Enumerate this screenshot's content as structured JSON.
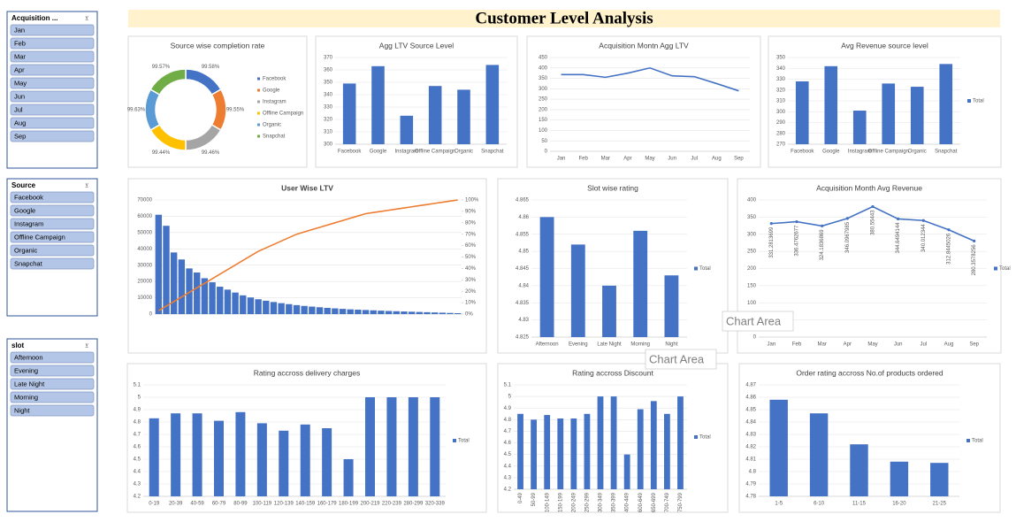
{
  "title": "Customer Level Analysis",
  "tooltips": [
    "Chart Area",
    "Chart Area"
  ],
  "slicers": [
    {
      "title": "Acquisition ...",
      "items": [
        "Jan",
        "Feb",
        "Mar",
        "Apr",
        "May",
        "Jun",
        "Jul",
        "Aug",
        "Sep"
      ]
    },
    {
      "title": "Source",
      "items": [
        "Facebook",
        "Google",
        "Instagram",
        "Offline Campaign",
        "Organic",
        "Snapchat"
      ]
    },
    {
      "title": "slot",
      "items": [
        "Afternoon",
        "Evening",
        "Late Night",
        "Morning",
        "Night"
      ]
    }
  ],
  "chart_data": [
    {
      "type": "pie",
      "title": "Source wise completion rate",
      "categories": [
        "Facebook",
        "Google",
        "Instagram",
        "Offline Campaign",
        "Organic",
        "Snapchat"
      ],
      "values": [
        99.58,
        99.55,
        99.46,
        99.44,
        99.63,
        99.57
      ],
      "value_labels": [
        "99.58%",
        "99.55%",
        "99.46%",
        "99.44%",
        "99.63%",
        "99.57%"
      ],
      "colors": [
        "#4472c4",
        "#ed7d31",
        "#a5a5a5",
        "#ffc000",
        "#5b9bd5",
        "#70ad47"
      ]
    },
    {
      "type": "bar",
      "title": "Agg LTV Source Level",
      "categories": [
        "Facebook",
        "Google",
        "Instagram",
        "Offline Campaign",
        "Organic",
        "Snapchat"
      ],
      "values": [
        349,
        363,
        323,
        347,
        344,
        364
      ],
      "color": "#4472c4",
      "ylim": [
        300,
        370
      ],
      "yticks": [
        300,
        310,
        320,
        330,
        340,
        350,
        360,
        370
      ],
      "grid": true
    },
    {
      "type": "line",
      "title": "Acquisition Montn Agg LTV",
      "categories": [
        "Jan",
        "Feb",
        "Mar",
        "Apr",
        "May",
        "Jun",
        "Jul",
        "Aug",
        "Sep"
      ],
      "values": [
        368,
        368,
        355,
        375,
        400,
        362,
        358,
        325,
        290
      ],
      "color": "#4472c4",
      "ylim": [
        0,
        450
      ],
      "yticks": [
        0,
        50,
        100,
        150,
        200,
        250,
        300,
        350,
        400,
        450
      ],
      "grid": true
    },
    {
      "type": "bar",
      "title": "Avg Revenue source level",
      "categories": [
        "Facebook",
        "Google",
        "Instagram",
        "Offline Campaign",
        "Organic",
        "Snapchat"
      ],
      "series": [
        {
          "name": "Total",
          "color": "#4472c4",
          "values": [
            328,
            342,
            301,
            326,
            323,
            344
          ]
        }
      ],
      "ylim": [
        270,
        350
      ],
      "yticks": [
        270,
        280,
        290,
        300,
        310,
        320,
        330,
        340,
        350
      ],
      "grid": true
    },
    {
      "type": "pareto",
      "title": "User Wise LTV",
      "categories": [
        null,
        null,
        null,
        null,
        null,
        null,
        null,
        null,
        null,
        null,
        null,
        null,
        null,
        null,
        null,
        null,
        null,
        null,
        null,
        null,
        null,
        null,
        null,
        null,
        null,
        null,
        null,
        null,
        null,
        null,
        null,
        null,
        null,
        null,
        null,
        null,
        null,
        null,
        null,
        null
      ],
      "series": [
        {
          "color": "#4472c4",
          "values": [
            60925,
            54149,
            37800,
            33500,
            28000,
            25500,
            22000,
            19500,
            16800,
            15000,
            13200,
            11500,
            10200,
            9100,
            8200,
            7400,
            6700,
            6100,
            5500,
            5000,
            4600,
            4200,
            3800,
            3500,
            3200,
            2900,
            2700,
            2500,
            2300,
            2100,
            1900,
            1750,
            1600,
            1450,
            1300,
            1150,
            1000,
            850,
            700,
            550
          ]
        },
        {
          "color": "#ed7d31",
          "axis": "y2",
          "values": [
            3,
            7,
            11,
            15,
            19,
            23,
            27,
            31,
            35,
            39,
            43,
            47,
            51,
            55,
            58,
            61,
            64,
            67,
            70,
            72,
            74,
            76,
            78,
            80,
            82,
            84,
            86,
            88,
            89,
            90,
            91,
            92,
            93,
            94,
            95,
            96,
            97,
            98,
            99,
            100
          ]
        }
      ],
      "ylim": [
        0,
        70000
      ],
      "yticks": [
        0,
        10000,
        20000,
        30000,
        40000,
        50000,
        60000,
        70000
      ],
      "y2lim": [
        0,
        100
      ],
      "y2ticks": [
        {
          "value": 0,
          "label": "0%"
        },
        {
          "value": 10,
          "label": "10%"
        },
        {
          "value": 20,
          "label": "20%"
        },
        {
          "value": 30,
          "label": "30%"
        },
        {
          "value": 40,
          "label": "40%"
        },
        {
          "value": 50,
          "label": "50%"
        },
        {
          "value": 60,
          "label": "60%"
        },
        {
          "value": 70,
          "label": "70%"
        },
        {
          "value": 80,
          "label": "80%"
        },
        {
          "value": 90,
          "label": "90%"
        },
        {
          "value": 100,
          "label": "100%"
        }
      ],
      "grid": true
    },
    {
      "type": "bar",
      "title": "Slot wise rating",
      "categories": [
        "Afternoon",
        "Evening",
        "Late Night",
        "Morning",
        "Night"
      ],
      "series": [
        {
          "name": "Total",
          "color": "#4472c4",
          "values": [
            4.86,
            4.852,
            4.84,
            4.856,
            4.843
          ]
        }
      ],
      "ylim": [
        4.825,
        4.865
      ],
      "yticks": [
        4.825,
        4.83,
        4.835,
        4.84,
        4.845,
        4.85,
        4.855,
        4.86,
        4.865
      ],
      "grid": true
    },
    {
      "type": "line",
      "title": "Acquisition Month Avg Revenue",
      "categories": [
        "Jan",
        "Feb",
        "Mar",
        "Apr",
        "May",
        "Jun",
        "Jul",
        "Aug",
        "Sep"
      ],
      "series": [
        {
          "name": "Total",
          "color": "#4472c4",
          "values": [
            331.2813699,
            336.4762677,
            324.1836869,
            346.0967985,
            380.55443,
            344.6494144,
            340.012344,
            312.8445026,
            280.3578256
          ]
        }
      ],
      "data_labels": true,
      "ylim": [
        0,
        400
      ],
      "yticks": [
        0,
        50,
        100,
        150,
        200,
        250,
        300,
        350,
        400
      ],
      "grid": true
    },
    {
      "type": "bar",
      "title": "Rating accross delivery charges",
      "categories": [
        "0-19",
        "20-39",
        "40-59",
        "60-79",
        "80-99",
        "100-119",
        "120-139",
        "140-159",
        "160-179",
        "180-199",
        "200-219",
        "220-239",
        "280-299",
        "320-339"
      ],
      "series": [
        {
          "name": "Total",
          "color": "#4472c4",
          "values": [
            4.83,
            4.87,
            4.87,
            4.81,
            4.88,
            4.79,
            4.73,
            4.78,
            4.75,
            4.5,
            5,
            5,
            5,
            5
          ]
        }
      ],
      "ylim": [
        4.2,
        5.1
      ],
      "yticks": [
        4.2,
        4.3,
        4.4,
        4.5,
        4.6,
        4.7,
        4.8,
        4.9,
        5,
        5.1
      ],
      "grid": true
    },
    {
      "type": "bar",
      "title": "Rating accross Discount",
      "categories": [
        "0-49",
        "50-99",
        "100-149",
        "150-199",
        "200-249",
        "250-299",
        "300-349",
        "350-399",
        "400-449",
        "600-649",
        "650-699",
        "700-749",
        "750-799"
      ],
      "series": [
        {
          "name": "Total",
          "color": "#4472c4",
          "values": [
            4.85,
            4.8,
            4.84,
            4.81,
            4.81,
            4.85,
            5,
            5,
            4.5,
            4.89,
            4.96,
            4.85,
            5
          ]
        }
      ],
      "ylim": [
        4.2,
        5.1
      ],
      "yticks": [
        4.2,
        4.3,
        4.4,
        4.5,
        4.6,
        4.7,
        4.8,
        4.9,
        5,
        5.1
      ],
      "grid": true
    },
    {
      "type": "bar",
      "title": "Order rating accross No.of products ordered",
      "categories": [
        "1-5",
        "6-10",
        "11-15",
        "16-20",
        "21-25"
      ],
      "series": [
        {
          "name": "Total",
          "color": "#4472c4",
          "values": [
            4.858,
            4.847,
            4.822,
            4.808,
            4.807
          ]
        }
      ],
      "ylim": [
        4.78,
        4.87
      ],
      "yticks": [
        4.78,
        4.79,
        4.8,
        4.81,
        4.82,
        4.83,
        4.84,
        4.85,
        4.86,
        4.87
      ],
      "grid": true
    }
  ]
}
